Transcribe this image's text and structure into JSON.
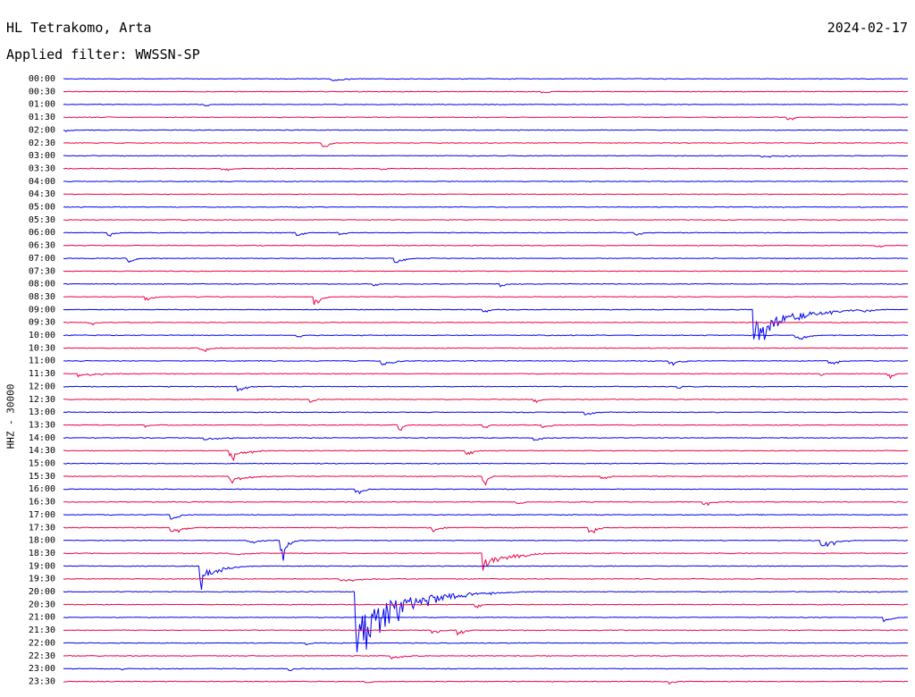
{
  "header": {
    "station": "HL Tetrakomo, Arta",
    "date": "2024-02-17",
    "filter": "Applied filter: WWSSN-SP"
  },
  "axis": {
    "ylabel": "HHZ - 30000"
  },
  "chart_data": {
    "type": "line",
    "chart_kind": "helicorder",
    "row_times": [
      "00:00",
      "00:30",
      "01:00",
      "01:30",
      "02:00",
      "02:30",
      "03:00",
      "03:30",
      "04:00",
      "04:30",
      "05:00",
      "05:30",
      "06:00",
      "06:30",
      "07:00",
      "07:30",
      "08:00",
      "08:30",
      "09:00",
      "09:30",
      "10:00",
      "10:30",
      "11:00",
      "11:30",
      "12:00",
      "12:30",
      "13:00",
      "13:30",
      "14:00",
      "14:30",
      "15:00",
      "15:30",
      "16:00",
      "16:30",
      "17:00",
      "17:30",
      "18:00",
      "18:30",
      "19:00",
      "19:30",
      "20:00",
      "20:30",
      "21:00",
      "21:30",
      "22:00",
      "22:30",
      "23:00",
      "23:30"
    ],
    "colors": [
      "#0000ee",
      "#ee0044"
    ],
    "row_minutes": 30,
    "events": [
      {
        "row": 0,
        "t": 0.32,
        "amp": 6,
        "dur": 0.015
      },
      {
        "row": 1,
        "t": 0.57,
        "amp": 3,
        "dur": 0.01
      },
      {
        "row": 2,
        "t": 0.17,
        "amp": 4,
        "dur": 0.005
      },
      {
        "row": 3,
        "t": 0.86,
        "amp": 6,
        "dur": 0.008
      },
      {
        "row": 4,
        "t": 0.005,
        "amp": 3,
        "dur": 0.01
      },
      {
        "row": 5,
        "t": 0.31,
        "amp": 10,
        "dur": 0.008
      },
      {
        "row": 6,
        "t": 0.83,
        "amp": 3,
        "dur": 0.08
      },
      {
        "row": 7,
        "t": 0.19,
        "amp": 4,
        "dur": 0.02
      },
      {
        "row": 7,
        "t": 0.38,
        "amp": 3,
        "dur": 0.005
      },
      {
        "row": 12,
        "t": 0.055,
        "amp": 6,
        "dur": 0.015
      },
      {
        "row": 12,
        "t": 0.28,
        "amp": 5,
        "dur": 0.01
      },
      {
        "row": 12,
        "t": 0.33,
        "amp": 4,
        "dur": 0.01
      },
      {
        "row": 12,
        "t": 0.68,
        "amp": 5,
        "dur": 0.01
      },
      {
        "row": 13,
        "t": 0.965,
        "amp": 4,
        "dur": 0.01
      },
      {
        "row": 14,
        "t": 0.08,
        "amp": 6,
        "dur": 0.01
      },
      {
        "row": 14,
        "t": 0.395,
        "amp": 9,
        "dur": 0.012
      },
      {
        "row": 16,
        "t": 0.37,
        "amp": 4,
        "dur": 0.008
      },
      {
        "row": 16,
        "t": 0.52,
        "amp": 5,
        "dur": 0.01
      },
      {
        "row": 17,
        "t": 0.1,
        "amp": 5,
        "dur": 0.015
      },
      {
        "row": 17,
        "t": 0.3,
        "amp": 12,
        "dur": 0.008
      },
      {
        "row": 18,
        "t": 0.82,
        "amp": 58,
        "dur": 0.04
      },
      {
        "row": 18,
        "t": 0.5,
        "amp": 5,
        "dur": 0.008
      },
      {
        "row": 18,
        "t": 0.95,
        "amp": 6,
        "dur": 0.01
      },
      {
        "row": 19,
        "t": 0.035,
        "amp": 4,
        "dur": 0.008
      },
      {
        "row": 20,
        "t": 0.28,
        "amp": 4,
        "dur": 0.008
      },
      {
        "row": 20,
        "t": 0.87,
        "amp": 8,
        "dur": 0.015
      },
      {
        "row": 21,
        "t": 0.165,
        "amp": 7,
        "dur": 0.012
      },
      {
        "row": 22,
        "t": 0.38,
        "amp": 8,
        "dur": 0.015
      },
      {
        "row": 22,
        "t": 0.72,
        "amp": 7,
        "dur": 0.015
      },
      {
        "row": 22,
        "t": 0.91,
        "amp": 7,
        "dur": 0.015
      },
      {
        "row": 23,
        "t": 0.02,
        "amp": 5,
        "dur": 0.03
      },
      {
        "row": 23,
        "t": 0.98,
        "amp": 8,
        "dur": 0.005
      },
      {
        "row": 23,
        "t": 0.9,
        "amp": 3,
        "dur": 0.01
      },
      {
        "row": 24,
        "t": 0.21,
        "amp": 7,
        "dur": 0.012
      },
      {
        "row": 24,
        "t": 0.73,
        "amp": 3,
        "dur": 0.008
      },
      {
        "row": 25,
        "t": 0.295,
        "amp": 8,
        "dur": 0.004
      },
      {
        "row": 25,
        "t": 0.56,
        "amp": 5,
        "dur": 0.01
      },
      {
        "row": 26,
        "t": 0.62,
        "amp": 6,
        "dur": 0.012
      },
      {
        "row": 27,
        "t": 0.1,
        "amp": 4,
        "dur": 0.01
      },
      {
        "row": 27,
        "t": 0.4,
        "amp": 10,
        "dur": 0.004
      },
      {
        "row": 27,
        "t": 0.5,
        "amp": 5,
        "dur": 0.008
      },
      {
        "row": 27,
        "t": 0.57,
        "amp": 6,
        "dur": 0.01
      },
      {
        "row": 28,
        "t": 0.17,
        "amp": 4,
        "dur": 0.04
      },
      {
        "row": 28,
        "t": 0.56,
        "amp": 5,
        "dur": 0.01
      },
      {
        "row": 29,
        "t": 0.2,
        "amp": 13,
        "dur": 0.02
      },
      {
        "row": 29,
        "t": 0.48,
        "amp": 6,
        "dur": 0.012
      },
      {
        "row": 31,
        "t": 0.2,
        "amp": 9,
        "dur": 0.025
      },
      {
        "row": 31,
        "t": 0.5,
        "amp": 11,
        "dur": 0.006
      },
      {
        "row": 31,
        "t": 0.64,
        "amp": 6,
        "dur": 0.008
      },
      {
        "row": 32,
        "t": 0.35,
        "amp": 7,
        "dur": 0.01
      },
      {
        "row": 33,
        "t": 0.54,
        "amp": 4,
        "dur": 0.01
      },
      {
        "row": 33,
        "t": 0.76,
        "amp": 6,
        "dur": 0.012
      },
      {
        "row": 34,
        "t": 0.13,
        "amp": 7,
        "dur": 0.012
      },
      {
        "row": 35,
        "t": 0.13,
        "amp": 10,
        "dur": 0.015
      },
      {
        "row": 35,
        "t": 0.44,
        "amp": 7,
        "dur": 0.01
      },
      {
        "row": 35,
        "t": 0.625,
        "amp": 11,
        "dur": 0.008
      },
      {
        "row": 36,
        "t": 0.26,
        "amp": 32,
        "dur": 0.006
      },
      {
        "row": 36,
        "t": 0.22,
        "amp": 5,
        "dur": 0.02
      },
      {
        "row": 36,
        "t": 0.9,
        "amp": 12,
        "dur": 0.018
      },
      {
        "row": 37,
        "t": 0.5,
        "amp": 25,
        "dur": 0.03
      },
      {
        "row": 37,
        "t": 0.2,
        "amp": 4,
        "dur": 0.03
      },
      {
        "row": 38,
        "t": 0.165,
        "amp": 28,
        "dur": 0.02
      },
      {
        "row": 39,
        "t": 0.33,
        "amp": 5,
        "dur": 0.04
      },
      {
        "row": 40,
        "t": 0.35,
        "amp": 95,
        "dur": 0.05
      },
      {
        "row": 41,
        "t": 0.49,
        "amp": 5,
        "dur": 0.008
      },
      {
        "row": 42,
        "t": 0.975,
        "amp": 8,
        "dur": 0.01
      },
      {
        "row": 43,
        "t": 0.44,
        "amp": 6,
        "dur": 0.01
      },
      {
        "row": 43,
        "t": 0.47,
        "amp": 7,
        "dur": 0.01
      },
      {
        "row": 44,
        "t": 0.29,
        "amp": 4,
        "dur": 0.008
      },
      {
        "row": 45,
        "t": 0.39,
        "amp": 5,
        "dur": 0.03
      },
      {
        "row": 46,
        "t": 0.07,
        "amp": 3,
        "dur": 0.008
      },
      {
        "row": 46,
        "t": 0.27,
        "amp": 4,
        "dur": 0.008
      },
      {
        "row": 47,
        "t": 0.36,
        "amp": 4,
        "dur": 0.01
      },
      {
        "row": 47,
        "t": 0.72,
        "amp": 4,
        "dur": 0.01
      }
    ]
  }
}
